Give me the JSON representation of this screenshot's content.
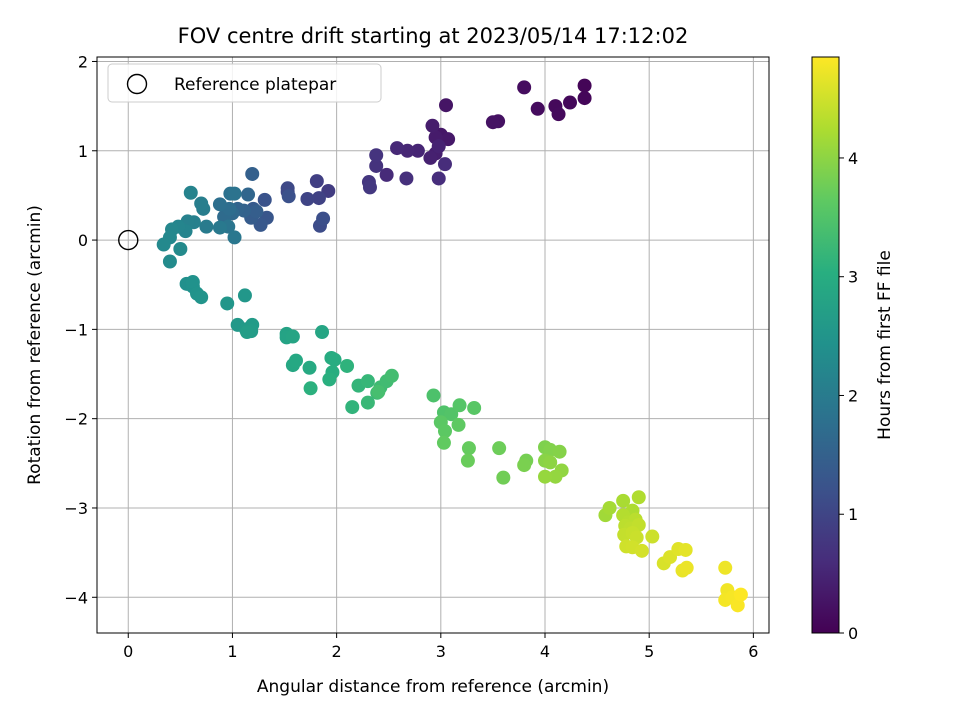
{
  "chart_data": {
    "type": "scatter",
    "title": "FOV centre drift starting at 2023/05/14 17:12:02",
    "xlabel": "Angular distance from reference (arcmin)",
    "ylabel": "Rotation from reference (arcmin)",
    "xlim": [
      -0.3,
      6.15
    ],
    "ylim": [
      -4.4,
      2.05
    ],
    "xticks": [
      0,
      1,
      2,
      3,
      4,
      5,
      6
    ],
    "yticks": [
      -4,
      -3,
      -2,
      -1,
      0,
      1,
      2
    ],
    "grid": true,
    "legend": {
      "placement": "top-left",
      "entries": [
        "Reference platepar"
      ]
    },
    "reference_point": {
      "x": 0,
      "y": 0
    },
    "colorbar": {
      "label": "Hours from first FF file",
      "colormap": "viridis",
      "range": [
        0,
        4.85
      ],
      "ticks": [
        0,
        1,
        2,
        3,
        4
      ]
    },
    "points": [
      [
        4.38,
        1.73,
        0.05
      ],
      [
        4.38,
        1.59,
        0.07
      ],
      [
        4.24,
        1.54,
        0.09
      ],
      [
        4.1,
        1.5,
        0.11
      ],
      [
        4.13,
        1.41,
        0.12
      ],
      [
        3.93,
        1.47,
        0.15
      ],
      [
        3.8,
        1.71,
        0.17
      ],
      [
        3.55,
        1.33,
        0.22
      ],
      [
        3.5,
        1.32,
        0.24
      ],
      [
        3.05,
        1.51,
        0.27
      ],
      [
        3.0,
        1.18,
        0.3
      ],
      [
        3.07,
        1.13,
        0.33
      ],
      [
        2.95,
        1.15,
        0.36
      ],
      [
        2.92,
        1.28,
        0.38
      ],
      [
        2.95,
        0.97,
        0.41
      ],
      [
        2.9,
        0.92,
        0.44
      ],
      [
        2.98,
        1.05,
        0.46
      ],
      [
        2.78,
        1.0,
        0.5
      ],
      [
        2.68,
        1.0,
        0.52
      ],
      [
        2.58,
        1.03,
        0.55
      ],
      [
        2.48,
        0.73,
        0.58
      ],
      [
        3.04,
        0.85,
        0.6
      ],
      [
        2.98,
        0.69,
        0.63
      ],
      [
        2.67,
        0.69,
        0.66
      ],
      [
        2.38,
        0.83,
        0.7
      ],
      [
        2.38,
        0.95,
        0.72
      ],
      [
        2.31,
        0.65,
        0.75
      ],
      [
        2.32,
        0.59,
        0.78
      ],
      [
        1.92,
        0.55,
        0.85
      ],
      [
        1.81,
        0.66,
        0.9
      ],
      [
        1.83,
        0.47,
        0.95
      ],
      [
        1.72,
        0.46,
        0.99
      ],
      [
        1.53,
        0.54,
        1.03
      ],
      [
        1.53,
        0.58,
        1.06
      ],
      [
        1.84,
        0.16,
        1.12
      ],
      [
        1.87,
        0.24,
        1.16
      ],
      [
        1.54,
        0.49,
        1.2
      ],
      [
        1.31,
        0.45,
        1.24
      ],
      [
        1.33,
        0.25,
        1.28
      ],
      [
        1.27,
        0.17,
        1.32
      ],
      [
        1.2,
        0.35,
        1.36
      ],
      [
        1.18,
        0.25,
        1.4
      ],
      [
        1.23,
        0.32,
        1.44
      ],
      [
        1.19,
        0.74,
        1.48
      ],
      [
        1.11,
        0.33,
        1.52
      ],
      [
        1.05,
        0.35,
        1.56
      ],
      [
        1.15,
        0.51,
        1.6
      ],
      [
        1.0,
        0.3,
        1.64
      ],
      [
        0.92,
        0.26,
        1.68
      ],
      [
        0.97,
        0.35,
        1.72
      ],
      [
        0.88,
        0.4,
        1.76
      ],
      [
        0.98,
        0.52,
        1.8
      ],
      [
        1.02,
        0.52,
        1.84
      ],
      [
        0.96,
        0.15,
        1.88
      ],
      [
        1.02,
        0.03,
        1.92
      ],
      [
        0.88,
        0.14,
        1.96
      ],
      [
        0.75,
        0.15,
        2.0
      ],
      [
        0.72,
        0.35,
        2.03
      ],
      [
        0.7,
        0.41,
        2.06
      ],
      [
        0.63,
        0.2,
        2.09
      ],
      [
        0.57,
        0.21,
        2.12
      ],
      [
        0.6,
        0.53,
        2.15
      ],
      [
        0.55,
        0.1,
        2.18
      ],
      [
        0.48,
        0.15,
        2.2
      ],
      [
        0.42,
        0.12,
        2.22
      ],
      [
        0.4,
        0.03,
        2.24
      ],
      [
        0.34,
        -0.05,
        2.26
      ],
      [
        0.5,
        -0.1,
        2.28
      ],
      [
        0.4,
        -0.24,
        2.3
      ],
      [
        0.56,
        -0.49,
        2.4
      ],
      [
        0.62,
        -0.52,
        2.42
      ],
      [
        0.62,
        -0.47,
        2.44
      ],
      [
        0.66,
        -0.6,
        2.46
      ],
      [
        0.7,
        -0.64,
        2.48
      ],
      [
        0.95,
        -0.71,
        2.52
      ],
      [
        1.12,
        -0.62,
        2.55
      ],
      [
        1.05,
        -0.95,
        2.58
      ],
      [
        1.13,
        -1.0,
        2.61
      ],
      [
        1.19,
        -0.95,
        2.63
      ],
      [
        1.18,
        -1.02,
        2.65
      ],
      [
        1.14,
        -1.03,
        2.67
      ],
      [
        1.52,
        -1.05,
        2.78
      ],
      [
        1.52,
        -1.09,
        2.8
      ],
      [
        1.58,
        -1.08,
        2.82
      ],
      [
        1.86,
        -1.03,
        2.85
      ],
      [
        1.58,
        -1.4,
        2.88
      ],
      [
        1.61,
        -1.35,
        2.9
      ],
      [
        1.74,
        -1.43,
        2.93
      ],
      [
        1.95,
        -1.32,
        2.96
      ],
      [
        1.98,
        -1.34,
        2.99
      ],
      [
        1.96,
        -1.48,
        3.02
      ],
      [
        1.93,
        -1.56,
        3.05
      ],
      [
        1.75,
        -1.66,
        3.08
      ],
      [
        2.1,
        -1.41,
        3.11
      ],
      [
        2.15,
        -1.87,
        3.14
      ],
      [
        2.21,
        -1.63,
        3.17
      ],
      [
        2.3,
        -1.58,
        3.2
      ],
      [
        2.3,
        -1.82,
        3.23
      ],
      [
        2.39,
        -1.71,
        3.26
      ],
      [
        2.42,
        -1.65,
        3.29
      ],
      [
        2.48,
        -1.58,
        3.32
      ],
      [
        2.53,
        -1.52,
        3.35
      ],
      [
        2.4,
        -1.7,
        3.38
      ],
      [
        2.93,
        -1.74,
        3.45
      ],
      [
        3.03,
        -1.93,
        3.48
      ],
      [
        3.1,
        -1.95,
        3.51
      ],
      [
        3.18,
        -1.85,
        3.54
      ],
      [
        3.32,
        -1.88,
        3.57
      ],
      [
        3.0,
        -2.04,
        3.6
      ],
      [
        3.04,
        -2.14,
        3.62
      ],
      [
        3.17,
        -2.07,
        3.64
      ],
      [
        3.03,
        -2.27,
        3.66
      ],
      [
        3.27,
        -2.33,
        3.69
      ],
      [
        3.26,
        -2.47,
        3.72
      ],
      [
        3.56,
        -2.33,
        3.75
      ],
      [
        3.6,
        -2.66,
        3.78
      ],
      [
        3.82,
        -2.47,
        3.82
      ],
      [
        3.8,
        -2.52,
        3.85
      ],
      [
        4.0,
        -2.32,
        3.88
      ],
      [
        4.05,
        -2.35,
        3.91
      ],
      [
        4.14,
        -2.37,
        3.94
      ],
      [
        4.0,
        -2.47,
        3.97
      ],
      [
        4.05,
        -2.49,
        4.0
      ],
      [
        4.16,
        -2.58,
        4.03
      ],
      [
        4.1,
        -2.65,
        4.05
      ],
      [
        4.0,
        -2.65,
        4.07
      ],
      [
        4.58,
        -3.08,
        4.15
      ],
      [
        4.62,
        -3.0,
        4.18
      ],
      [
        4.75,
        -2.92,
        4.21
      ],
      [
        4.84,
        -3.03,
        4.24
      ],
      [
        4.9,
        -2.88,
        4.27
      ],
      [
        4.75,
        -3.08,
        4.3
      ],
      [
        4.8,
        -3.16,
        4.32
      ],
      [
        4.87,
        -3.13,
        4.34
      ],
      [
        4.77,
        -3.2,
        4.36
      ],
      [
        4.82,
        -3.23,
        4.38
      ],
      [
        4.9,
        -3.19,
        4.4
      ],
      [
        4.76,
        -3.3,
        4.42
      ],
      [
        4.84,
        -3.28,
        4.44
      ],
      [
        4.88,
        -3.33,
        4.46
      ],
      [
        5.03,
        -3.32,
        4.48
      ],
      [
        4.78,
        -3.43,
        4.5
      ],
      [
        4.84,
        -3.44,
        4.52
      ],
      [
        4.93,
        -3.48,
        4.54
      ],
      [
        5.14,
        -3.62,
        4.57
      ],
      [
        5.2,
        -3.55,
        4.6
      ],
      [
        5.28,
        -3.46,
        4.63
      ],
      [
        5.35,
        -3.47,
        4.66
      ],
      [
        5.32,
        -3.7,
        4.69
      ],
      [
        5.36,
        -3.67,
        4.71
      ],
      [
        5.73,
        -3.67,
        4.74
      ],
      [
        5.75,
        -3.92,
        4.76
      ],
      [
        5.73,
        -4.03,
        4.78
      ],
      [
        5.8,
        -4.0,
        4.8
      ],
      [
        5.85,
        -4.09,
        4.82
      ],
      [
        5.88,
        -3.97,
        4.84
      ]
    ]
  }
}
